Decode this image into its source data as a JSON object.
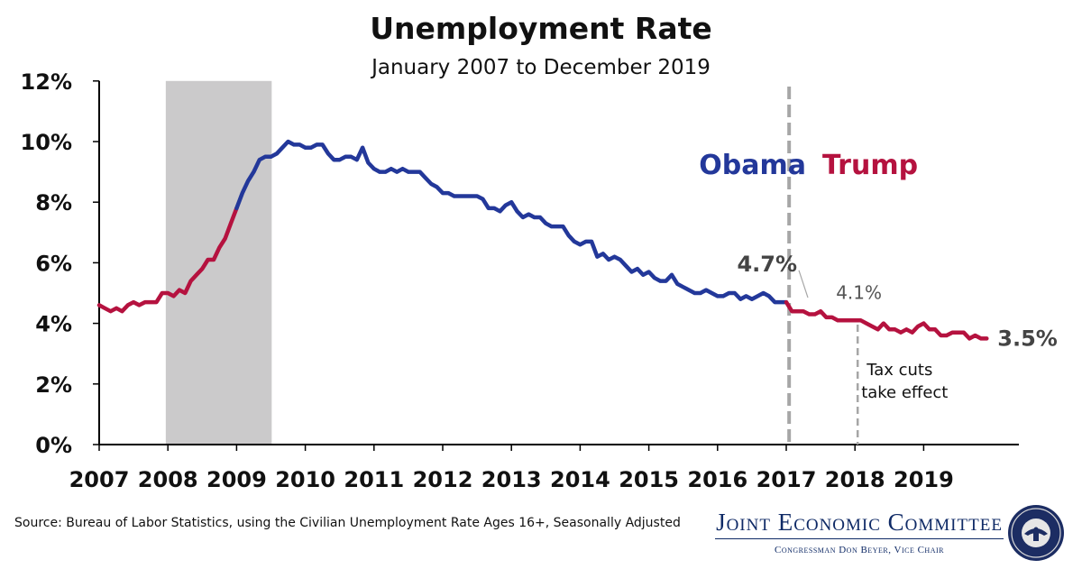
{
  "chart_data": {
    "type": "line",
    "title": "Unemployment Rate",
    "subtitle": "January 2007 to December 2019",
    "xlabel": "",
    "ylabel": "",
    "ylim": [
      0,
      12
    ],
    "yticks": [
      "0%",
      "2%",
      "4%",
      "6%",
      "8%",
      "10%",
      "12%"
    ],
    "xticks": [
      "2007",
      "2008",
      "2009",
      "2010",
      "2011",
      "2012",
      "2013",
      "2014",
      "2015",
      "2016",
      "2017",
      "2018",
      "2019"
    ],
    "x_start_year": 2007,
    "colors": {
      "red": "#b5123f",
      "blue": "#23389a",
      "recession": "#cbcacb",
      "annotation": "#a6a6a6"
    },
    "series": [
      {
        "name": "Unemployment Rate",
        "values": [
          4.6,
          4.5,
          4.4,
          4.5,
          4.4,
          4.6,
          4.7,
          4.6,
          4.7,
          4.7,
          4.7,
          5.0,
          5.0,
          4.9,
          5.1,
          5.0,
          5.4,
          5.6,
          5.8,
          6.1,
          6.1,
          6.5,
          6.8,
          7.3,
          7.8,
          8.3,
          8.7,
          9.0,
          9.4,
          9.5,
          9.5,
          9.6,
          9.8,
          10.0,
          9.9,
          9.9,
          9.8,
          9.8,
          9.9,
          9.9,
          9.6,
          9.4,
          9.4,
          9.5,
          9.5,
          9.4,
          9.8,
          9.3,
          9.1,
          9.0,
          9.0,
          9.1,
          9.0,
          9.1,
          9.0,
          9.0,
          9.0,
          8.8,
          8.6,
          8.5,
          8.3,
          8.3,
          8.2,
          8.2,
          8.2,
          8.2,
          8.2,
          8.1,
          7.8,
          7.8,
          7.7,
          7.9,
          8.0,
          7.7,
          7.5,
          7.6,
          7.5,
          7.5,
          7.3,
          7.2,
          7.2,
          7.2,
          6.9,
          6.7,
          6.6,
          6.7,
          6.7,
          6.2,
          6.3,
          6.1,
          6.2,
          6.1,
          5.9,
          5.7,
          5.8,
          5.6,
          5.7,
          5.5,
          5.4,
          5.4,
          5.6,
          5.3,
          5.2,
          5.1,
          5.0,
          5.0,
          5.1,
          5.0,
          4.9,
          4.9,
          5.0,
          5.0,
          4.8,
          4.9,
          4.8,
          4.9,
          5.0,
          4.9,
          4.7,
          4.7,
          4.7,
          4.4,
          4.4,
          4.4,
          4.3,
          4.3,
          4.4,
          4.2,
          4.2,
          4.1,
          4.1,
          4.1,
          4.1,
          4.1,
          4.0,
          3.9,
          3.8,
          4.0,
          3.8,
          3.8,
          3.7,
          3.8,
          3.7,
          3.9,
          4.0,
          3.8,
          3.8,
          3.6,
          3.6,
          3.7,
          3.7,
          3.7,
          3.5,
          3.6,
          3.5,
          3.5
        ],
        "segments": [
          {
            "from": 0,
            "to": 24,
            "party": "red"
          },
          {
            "from": 24,
            "to": 120,
            "party": "blue"
          },
          {
            "from": 120,
            "to": 155,
            "party": "red"
          }
        ]
      }
    ],
    "recession": {
      "start": "2007-12",
      "end": "2009-06",
      "start_index": 11,
      "end_index": 29.5
    },
    "annotations": {
      "obama_label": "Obama",
      "trump_label": "Trump",
      "inauguration_index": 120.5,
      "inauguration_value_label": "4.7%",
      "inauguration_value": 4.7,
      "tax_cut_index": 132,
      "tax_cut_value_label": "4.1%",
      "tax_cut_value": 4.1,
      "tax_cut_text_1": "Tax cuts",
      "tax_cut_text_2": "take effect",
      "end_value_label": "3.5%",
      "end_value": 3.5
    }
  },
  "source": "Source: Bureau of Labor Statistics, using the Civilian Unemployment Rate Ages 16+, Seasonally Adjusted",
  "branding": {
    "name": "Joint Economic Committee",
    "subtitle": "Congressman Don Beyer, Vice Chair",
    "seal_icon": "congress-seal-icon"
  }
}
